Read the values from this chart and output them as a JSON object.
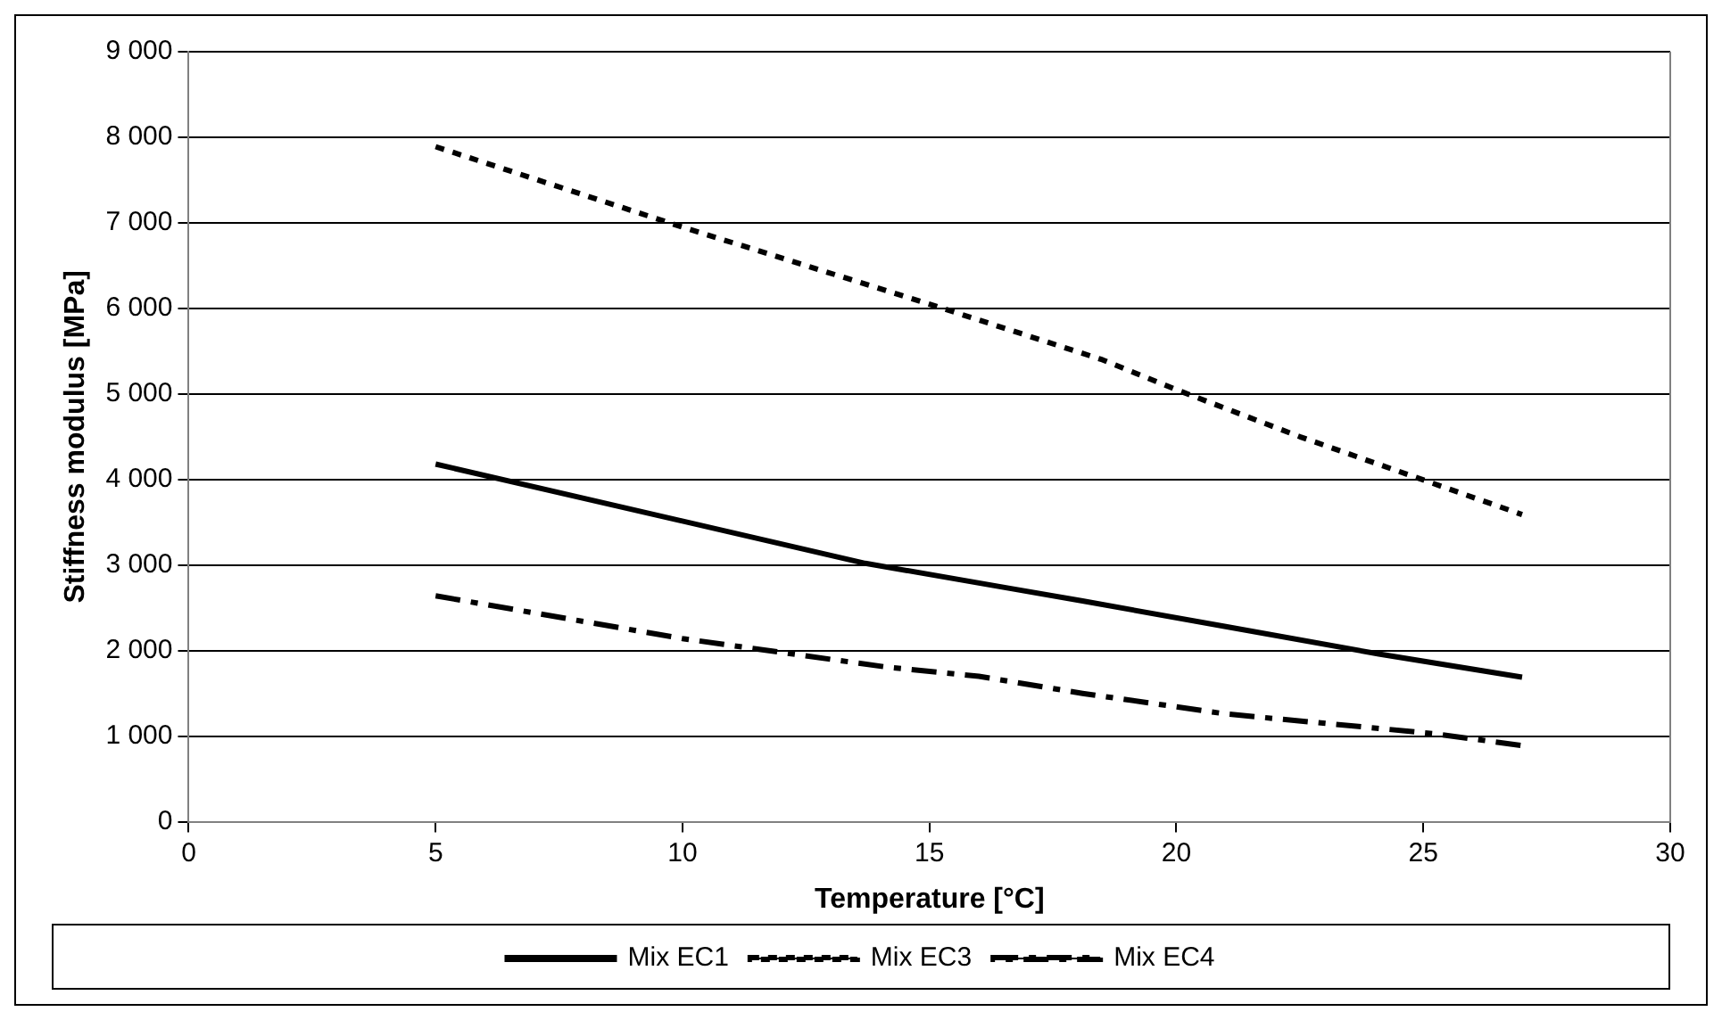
{
  "chart_data": {
    "type": "line",
    "xlabel": "Temperature [°C]",
    "ylabel": "Stiffness modulus [MPa]",
    "xlim": [
      0,
      30
    ],
    "xticks": [
      0,
      5,
      10,
      15,
      20,
      25,
      30
    ],
    "ylim": [
      0,
      9000
    ],
    "yticks": [
      0,
      {
        "value": 1000,
        "label": "1 000"
      },
      {
        "value": 2000,
        "label": "2 000"
      },
      {
        "value": 3000,
        "label": "3 000"
      },
      {
        "value": 4000,
        "label": "4 000"
      },
      {
        "value": 5000,
        "label": "5 000"
      },
      {
        "value": 6000,
        "label": "6 000"
      },
      {
        "value": 7000,
        "label": "7 000"
      },
      {
        "value": 8000,
        "label": "8 000"
      },
      {
        "value": 9000,
        "label": "9 000"
      }
    ],
    "grid": "y",
    "legend": "bottom",
    "marker": "none",
    "series": [
      {
        "name": "Mix EC1",
        "color": "#000000",
        "line_style": "solid",
        "x": [
          5,
          13.7,
          16.6,
          18.1,
          21,
          24.1,
          27
        ],
        "values": [
          4180,
          3020,
          2730,
          2580,
          2280,
          1960,
          1690
        ]
      },
      {
        "name": "Mix EC3",
        "color": "#000000",
        "line_style": "dotted",
        "x": [
          5,
          10,
          15,
          18.5,
          20,
          22.5,
          27
        ],
        "values": [
          7890,
          6950,
          6050,
          5400,
          5050,
          4500,
          3590
        ]
      },
      {
        "name": "Mix EC4",
        "color": "#000000",
        "line_style": "dashed",
        "x": [
          5,
          10,
          14.1,
          16,
          18.1,
          21,
          25.2,
          27
        ],
        "values": [
          2640,
          2140,
          1810,
          1700,
          1500,
          1260,
          1030,
          890
        ]
      }
    ]
  }
}
